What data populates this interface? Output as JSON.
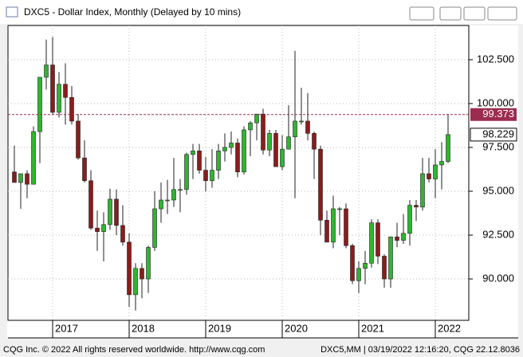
{
  "chart_data": {
    "type": "candlestick",
    "title": "DXC5 - Dollar Index, Monthly (Delayed by 10 mins)",
    "categories": [
      null,
      null,
      null,
      null,
      null,
      null,
      "2017",
      null,
      null,
      null,
      null,
      null,
      null,
      null,
      null,
      null,
      null,
      null,
      "2018",
      null,
      null,
      null,
      null,
      null,
      null,
      null,
      null,
      null,
      null,
      null,
      "2019",
      null,
      null,
      null,
      null,
      null,
      null,
      null,
      null,
      null,
      null,
      null,
      "2020",
      null,
      null,
      null,
      null,
      null,
      null,
      null,
      null,
      null,
      null,
      null,
      "2021",
      null,
      null,
      null,
      null,
      null,
      null,
      null,
      null,
      null,
      null,
      null,
      "2022",
      null,
      null
    ],
    "open": [
      96.1,
      95.5,
      96.0,
      95.4,
      98.4,
      101.5,
      102.2,
      99.5,
      101.1,
      100.35,
      99.0,
      96.9,
      95.6,
      92.9,
      92.7,
      93.1,
      94.55,
      93.05,
      92.1,
      89.1,
      90.6,
      90.0,
      91.8,
      94.0,
      94.5,
      94.5,
      95.1,
      95.1,
      97.1,
      97.3,
      96.2,
      95.6,
      96.2,
      97.3,
      97.5,
      97.75,
      96.1,
      98.5,
      98.9,
      99.4,
      97.35,
      98.3,
      96.4,
      97.4,
      98.1,
      99.0,
      99.0,
      98.3,
      97.4,
      93.35,
      92.1,
      94.0,
      94.0,
      91.9,
      89.9,
      90.6,
      90.9,
      93.2,
      91.3,
      90.0,
      92.4,
      92.2,
      92.6,
      94.2,
      94.1,
      96.0,
      95.7,
      96.5,
      96.7
    ],
    "high": [
      97.6,
      96.0,
      96.2,
      98.7,
      101.5,
      103.65,
      103.8,
      101.8,
      102.3,
      101.0,
      99.4,
      97.9,
      96.2,
      93.9,
      93.8,
      95.15,
      95.1,
      94.2,
      92.6,
      90.9,
      90.9,
      91.9,
      95.0,
      95.5,
      95.65,
      96.9,
      95.7,
      97.2,
      97.7,
      97.7,
      96.95,
      97.4,
      97.7,
      98.3,
      98.4,
      98.0,
      98.7,
      99.0,
      99.4,
      99.7,
      98.5,
      98.5,
      98.2,
      99.9,
      103.0,
      100.9,
      100.6,
      98.4,
      97.6,
      93.9,
      94.75,
      94.1,
      94.3,
      92.0,
      91.0,
      91.6,
      93.4,
      93.4,
      91.4,
      92.4,
      93.2,
      93.7,
      94.5,
      94.5,
      96.9,
      96.9,
      97.4,
      97.8,
      99.4
    ],
    "low": [
      95.5,
      94.0,
      94.6,
      95.4,
      96.6,
      100.8,
      99.4,
      99.2,
      98.8,
      98.8,
      96.8,
      95.5,
      92.8,
      91.6,
      91.0,
      92.8,
      92.5,
      91.9,
      88.4,
      88.2,
      88.9,
      89.2,
      91.6,
      93.2,
      93.7,
      94.1,
      93.8,
      94.8,
      95.7,
      96.0,
      95.0,
      95.2,
      95.7,
      96.7,
      97.1,
      95.8,
      95.95,
      97.0,
      97.9,
      97.1,
      97.0,
      96.4,
      96.2,
      97.4,
      94.6,
      98.8,
      97.9,
      95.7,
      92.5,
      92.1,
      91.75,
      92.5,
      91.75,
      89.7,
      89.2,
      89.7,
      90.65,
      90.85,
      89.5,
      89.5,
      91.8,
      92.0,
      91.9,
      93.3,
      93.9,
      95.5,
      94.6,
      95.1,
      96.6
    ],
    "close": [
      95.5,
      96.0,
      95.4,
      98.4,
      101.5,
      102.2,
      99.5,
      101.1,
      100.35,
      99.0,
      96.9,
      95.6,
      92.9,
      92.7,
      93.1,
      94.55,
      93.05,
      92.1,
      89.1,
      90.6,
      90.0,
      91.8,
      94.0,
      94.5,
      94.5,
      95.1,
      95.1,
      97.1,
      97.3,
      96.2,
      95.6,
      96.2,
      97.3,
      97.5,
      97.75,
      96.1,
      98.5,
      98.9,
      99.4,
      97.35,
      98.3,
      96.4,
      97.4,
      98.1,
      99.0,
      99.0,
      98.3,
      97.4,
      93.35,
      92.1,
      94.0,
      94.0,
      91.9,
      89.9,
      90.6,
      90.9,
      93.2,
      91.3,
      90.0,
      92.4,
      92.2,
      92.6,
      94.2,
      94.1,
      96.0,
      95.7,
      96.5,
      96.7,
      98.229
    ],
    "up_color": "#2fb52f",
    "down_color": "#8b1c1c",
    "ylim": [
      87.64,
      104.45
    ],
    "yticks": [
      {
        "value": 90,
        "label": "90.000"
      },
      {
        "value": 92.5,
        "label": "92.500"
      },
      {
        "value": 95,
        "label": "95.000"
      },
      {
        "value": 97.5,
        "label": "97.500"
      },
      {
        "value": 100,
        "label": "100.000"
      },
      {
        "value": 102.5,
        "label": "102.500"
      }
    ],
    "reference_line": 99.373,
    "reference_color": "#9b2c4f",
    "grid": true
  },
  "footer": {
    "left": "CQG Inc. © 2022 All rights reserved worldwide. http://www.cqg.com",
    "right": "DXC5,MM | 03/19/2022 12:16:20, CQG 22.12.8036"
  }
}
